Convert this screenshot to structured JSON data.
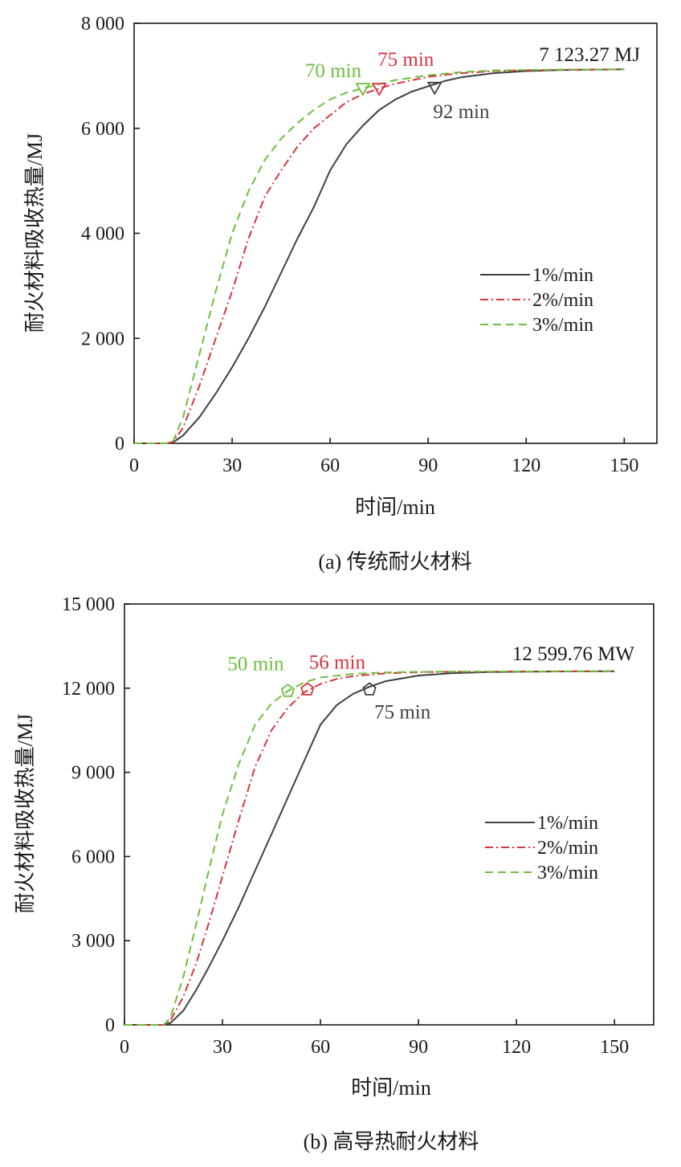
{
  "colors": {
    "series_1": "#404040",
    "series_2": "#d9333f",
    "series_3": "#6cbf3c",
    "axis": "#1a1a1a"
  },
  "chart_data": [
    {
      "type": "line",
      "caption": "(a) 传统耐火材料",
      "xlabel": "时间/min",
      "ylabel": "耐火材料吸收热量/MJ",
      "xlim": [
        0,
        160
      ],
      "ylim": [
        0,
        8000
      ],
      "xticks": [
        0,
        30,
        60,
        90,
        120,
        150
      ],
      "yticks": [
        0,
        2000,
        4000,
        6000,
        8000
      ],
      "xtick_labels": [
        "0",
        "30",
        "60",
        "90",
        "120",
        "150"
      ],
      "ytick_labels": [
        "0",
        "2 000",
        "4 000",
        "6 000",
        "8 000"
      ],
      "grid": false,
      "legend_position": "right",
      "series": [
        {
          "name": "1%/min",
          "style": "solid",
          "x": [
            0,
            10,
            12,
            15,
            20,
            25,
            30,
            35,
            40,
            45,
            50,
            55,
            60,
            65,
            70,
            75,
            80,
            85,
            90,
            95,
            100,
            110,
            120,
            130,
            140,
            150
          ],
          "y": [
            0,
            0,
            20,
            150,
            500,
            950,
            1450,
            2000,
            2600,
            3250,
            3900,
            4500,
            5200,
            5700,
            6050,
            6350,
            6550,
            6700,
            6800,
            6900,
            6970,
            7050,
            7090,
            7110,
            7118,
            7123.27
          ]
        },
        {
          "name": "2%/min",
          "style": "dashdot",
          "x": [
            0,
            10,
            12,
            15,
            20,
            25,
            30,
            35,
            40,
            45,
            50,
            55,
            60,
            65,
            70,
            75,
            80,
            90,
            100,
            110,
            120,
            130,
            140,
            150
          ],
          "y": [
            0,
            0,
            30,
            300,
            1100,
            2000,
            2900,
            3900,
            4700,
            5200,
            5650,
            6000,
            6250,
            6500,
            6650,
            6760,
            6850,
            6980,
            7050,
            7090,
            7105,
            7115,
            7120,
            7123.27
          ]
        },
        {
          "name": "3%/min",
          "style": "dashed",
          "x": [
            0,
            10,
            12,
            15,
            20,
            25,
            30,
            35,
            40,
            45,
            50,
            55,
            60,
            65,
            70,
            75,
            80,
            90,
            100,
            110,
            120,
            130,
            140,
            150
          ],
          "y": [
            0,
            0,
            50,
            500,
            1700,
            2900,
            4000,
            4800,
            5400,
            5800,
            6100,
            6350,
            6550,
            6680,
            6760,
            6840,
            6920,
            7010,
            7070,
            7100,
            7112,
            7118,
            7121,
            7123.27
          ]
        }
      ],
      "markers": [
        {
          "series": 3,
          "x": 70,
          "y": 6760,
          "shape": "triangle-down",
          "label": "70 min",
          "label_dx": -72,
          "label_dy": -14
        },
        {
          "series": 2,
          "x": 75,
          "y": 6760,
          "shape": "triangle-down",
          "label": "75 min",
          "label_dx": -2,
          "label_dy": -28
        },
        {
          "series": 1,
          "x": 92,
          "y": 6780,
          "shape": "triangle-down",
          "label": "92 min",
          "label_dx": -2,
          "label_dy": 38
        }
      ],
      "annotation": {
        "text": "7 123.27 MJ",
        "x": 150,
        "y": 7123.27
      }
    },
    {
      "type": "line",
      "caption": "(b) 高导热耐火材料",
      "xlabel": "时间/min",
      "ylabel": "耐火材料吸收热量/MJ",
      "xlim": [
        0,
        162
      ],
      "ylim": [
        0,
        15000
      ],
      "xticks": [
        0,
        30,
        60,
        90,
        120,
        150
      ],
      "yticks": [
        0,
        3000,
        6000,
        9000,
        12000,
        15000
      ],
      "xtick_labels": [
        "0",
        "30",
        "60",
        "90",
        "120",
        "150"
      ],
      "ytick_labels": [
        "0",
        "3 000",
        "6 000",
        "9 000",
        "12 000",
        "15 000"
      ],
      "grid": false,
      "legend_position": "right",
      "series": [
        {
          "name": "1%/min",
          "style": "solid",
          "x": [
            0,
            12,
            14,
            18,
            22,
            26,
            30,
            35,
            40,
            45,
            50,
            55,
            60,
            65,
            70,
            75,
            80,
            90,
            100,
            110,
            120,
            130,
            140,
            150
          ],
          "y": [
            0,
            0,
            60,
            500,
            1250,
            2100,
            3000,
            4200,
            5500,
            6800,
            8100,
            9400,
            10700,
            11400,
            11800,
            12050,
            12250,
            12450,
            12530,
            12570,
            12585,
            12593,
            12597,
            12599.76
          ]
        },
        {
          "name": "2%/min",
          "style": "dashdot",
          "x": [
            0,
            12,
            14,
            18,
            22,
            26,
            30,
            35,
            40,
            45,
            50,
            55,
            60,
            65,
            70,
            80,
            90,
            100,
            120,
            150
          ],
          "y": [
            0,
            0,
            150,
            1000,
            2200,
            3700,
            5300,
            7300,
            9200,
            10500,
            11300,
            11850,
            12150,
            12330,
            12430,
            12530,
            12570,
            12585,
            12595,
            12599.76
          ]
        },
        {
          "name": "3%/min",
          "style": "dashed",
          "x": [
            0,
            12,
            14,
            18,
            22,
            26,
            30,
            35,
            40,
            45,
            50,
            55,
            60,
            70,
            80,
            90,
            100,
            120,
            150
          ],
          "y": [
            0,
            0,
            250,
            1700,
            3600,
            5600,
            7500,
            9300,
            10700,
            11450,
            11900,
            12200,
            12380,
            12510,
            12560,
            12580,
            12590,
            12596,
            12599.76
          ]
        }
      ],
      "markers": [
        {
          "series": 3,
          "x": 50,
          "y": 11900,
          "shape": "pentagon",
          "label": "50 min",
          "label_dx": -75,
          "label_dy": -26
        },
        {
          "series": 2,
          "x": 56,
          "y": 11950,
          "shape": "pentagon",
          "label": "56 min",
          "label_dx": 2,
          "label_dy": -26
        },
        {
          "series": 1,
          "x": 75,
          "y": 11950,
          "shape": "pentagon",
          "label": "75 min",
          "label_dx": 6,
          "label_dy": 36
        }
      ],
      "annotation": {
        "text": "12 599.76 MW",
        "x": 150,
        "y": 12599.76
      }
    }
  ]
}
